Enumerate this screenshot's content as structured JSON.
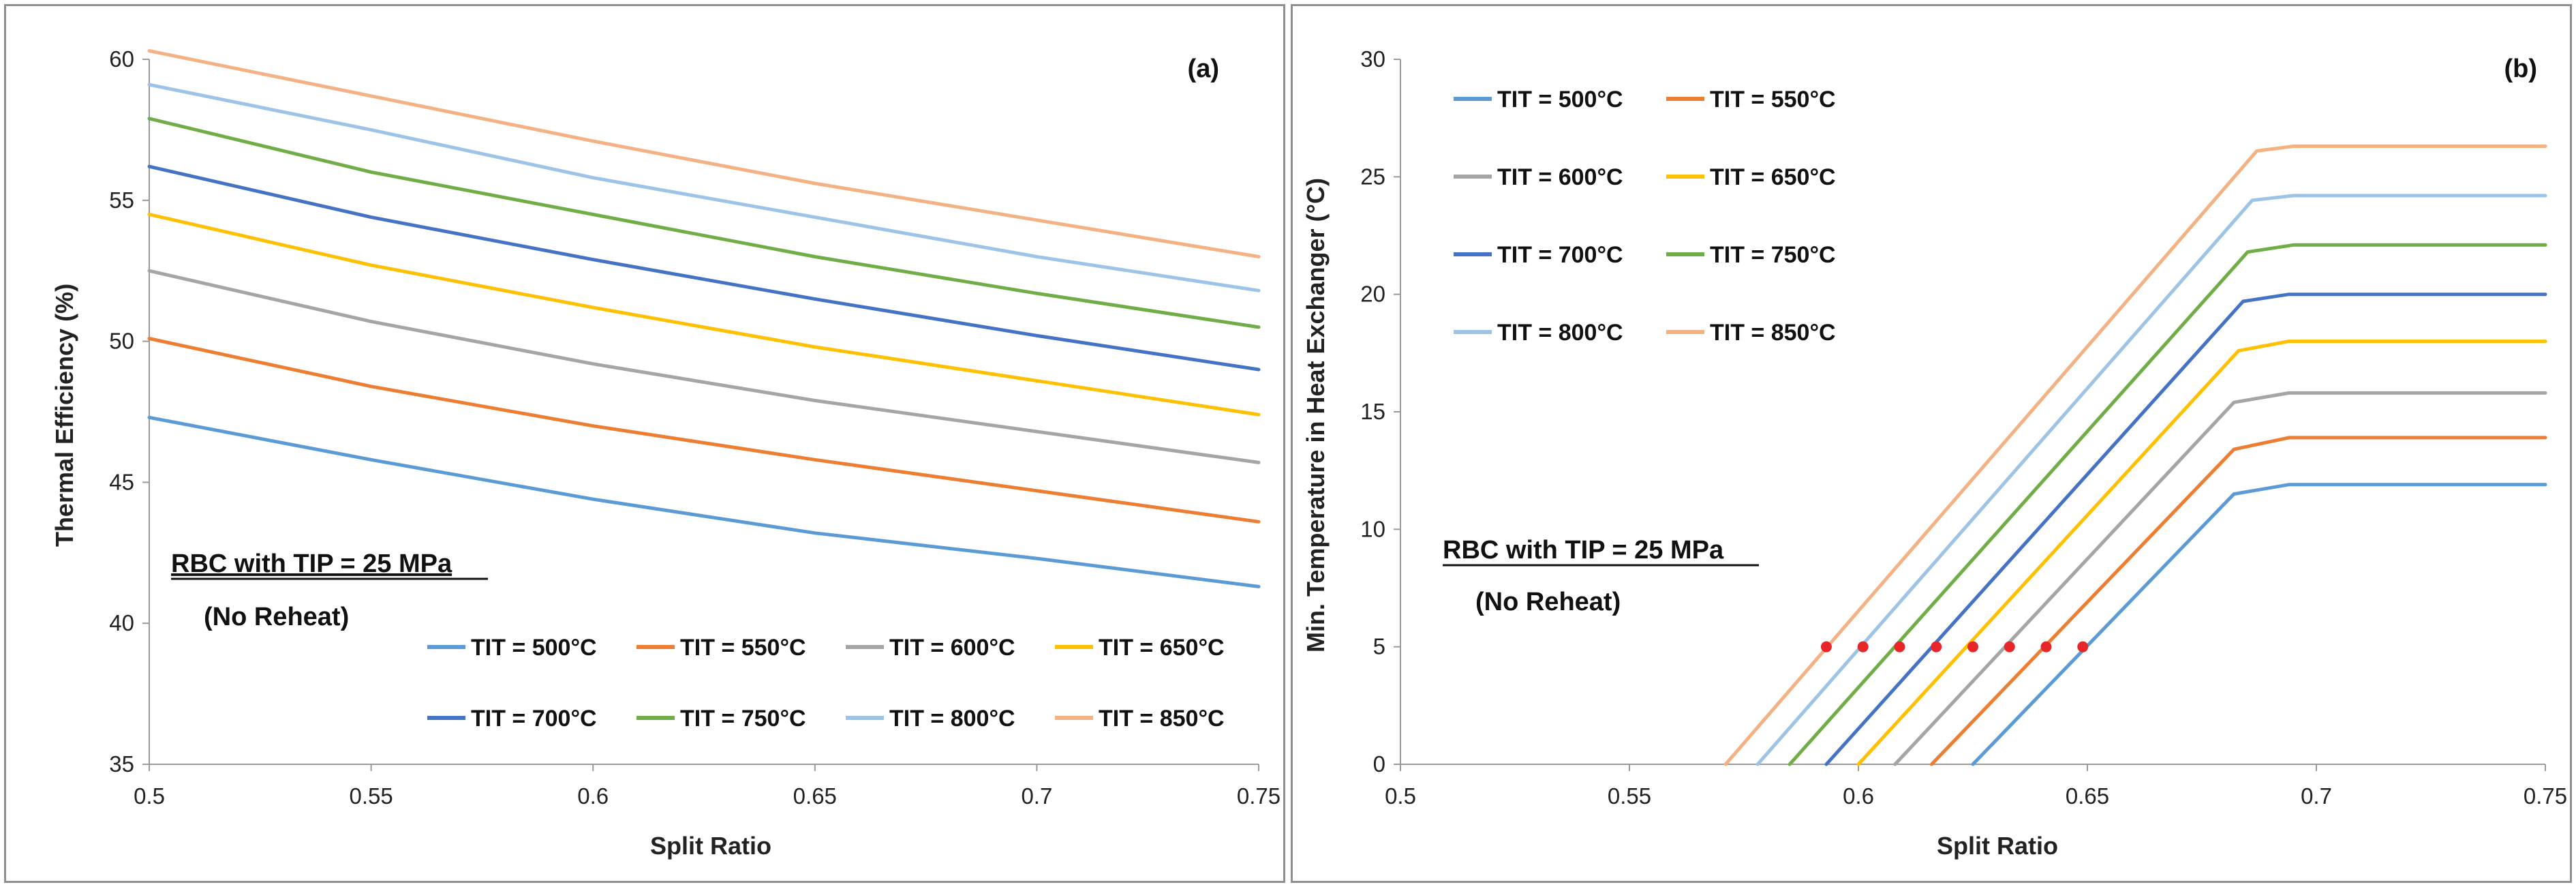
{
  "chart_data": [
    {
      "type": "line",
      "panel_label": "(a)",
      "title": "",
      "xlabel": "Split Ratio",
      "ylabel": "Thermal Efficiency (%)",
      "xlim": [
        0.5,
        0.75
      ],
      "ylim": [
        35,
        60
      ],
      "xticks": [
        "0.5",
        "0.55",
        "0.6",
        "0.65",
        "0.7",
        "0.75"
      ],
      "yticks": [
        "35",
        "40",
        "45",
        "50",
        "55",
        "60"
      ],
      "grid": false,
      "legend_position": "bottom-center",
      "annotation": {
        "line1": "RBC with TIP = 25 MPa",
        "line2": "(No Reheat)"
      },
      "x": [
        0.5,
        0.55,
        0.6,
        0.65,
        0.7,
        0.75
      ],
      "series": [
        {
          "name": "TIT = 500°C",
          "color": "#5b9bd5",
          "values": [
            47.3,
            45.8,
            44.4,
            43.2,
            42.3,
            41.3
          ]
        },
        {
          "name": "TIT = 550°C",
          "color": "#ed7d31",
          "values": [
            50.1,
            48.4,
            47.0,
            45.8,
            44.7,
            43.6
          ]
        },
        {
          "name": "TIT = 600°C",
          "color": "#a5a5a5",
          "values": [
            52.5,
            50.7,
            49.2,
            47.9,
            46.8,
            45.7
          ]
        },
        {
          "name": "TIT = 650°C",
          "color": "#ffc000",
          "values": [
            54.5,
            52.7,
            51.2,
            49.8,
            48.6,
            47.4
          ]
        },
        {
          "name": "TIT = 700°C",
          "color": "#4472c4",
          "values": [
            56.2,
            54.4,
            52.9,
            51.5,
            50.2,
            49.0
          ]
        },
        {
          "name": "TIT = 750°C",
          "color": "#70ad47",
          "values": [
            57.9,
            56.0,
            54.5,
            53.0,
            51.7,
            50.5
          ]
        },
        {
          "name": "TIT = 800°C",
          "color": "#9dc3e6",
          "values": [
            59.1,
            57.5,
            55.8,
            54.4,
            53.0,
            51.8
          ]
        },
        {
          "name": "TIT = 850°C",
          "color": "#f4b183",
          "values": [
            60.3,
            58.7,
            57.1,
            55.6,
            54.3,
            53.0
          ]
        }
      ]
    },
    {
      "type": "line",
      "panel_label": "(b)",
      "title": "",
      "xlabel": "Split Ratio",
      "ylabel": "Min. Temperature in Heat Exchanger (°C)",
      "xlim": [
        0.5,
        0.75
      ],
      "ylim": [
        0,
        30
      ],
      "xticks": [
        "0.5",
        "0.55",
        "0.6",
        "0.65",
        "0.7",
        "0.75"
      ],
      "yticks": [
        "0",
        "5",
        "10",
        "15",
        "20",
        "25",
        "30"
      ],
      "grid": false,
      "legend_position": "top-left",
      "annotation": {
        "line1": "RBC with TIP = 25 MPa",
        "line2": "(No Reheat)"
      },
      "series": [
        {
          "name": "TIT = 500°C",
          "color": "#5b9bd5",
          "points": [
            [
              0.625,
              0
            ],
            [
              0.682,
              11.5
            ],
            [
              0.694,
              11.9
            ],
            [
              0.75,
              11.9
            ]
          ],
          "marker": [
            0.649,
            5
          ]
        },
        {
          "name": "TIT = 550°C",
          "color": "#ed7d31",
          "points": [
            [
              0.616,
              0
            ],
            [
              0.682,
              13.4
            ],
            [
              0.694,
              13.9
            ],
            [
              0.75,
              13.9
            ]
          ],
          "marker": [
            0.641,
            5
          ]
        },
        {
          "name": "TIT = 600°C",
          "color": "#a5a5a5",
          "points": [
            [
              0.608,
              0
            ],
            [
              0.682,
              15.4
            ],
            [
              0.694,
              15.8
            ],
            [
              0.75,
              15.8
            ]
          ],
          "marker": [
            0.633,
            5
          ]
        },
        {
          "name": "TIT = 650°C",
          "color": "#ffc000",
          "points": [
            [
              0.6,
              0
            ],
            [
              0.683,
              17.6
            ],
            [
              0.694,
              18.0
            ],
            [
              0.75,
              18.0
            ]
          ],
          "marker": [
            0.625,
            5
          ]
        },
        {
          "name": "TIT = 700°C",
          "color": "#4472c4",
          "points": [
            [
              0.593,
              0
            ],
            [
              0.684,
              19.7
            ],
            [
              0.694,
              20.0
            ],
            [
              0.75,
              20.0
            ]
          ],
          "marker": [
            0.617,
            5
          ]
        },
        {
          "name": "TIT = 750°C",
          "color": "#70ad47",
          "points": [
            [
              0.585,
              0
            ],
            [
              0.685,
              21.8
            ],
            [
              0.695,
              22.1
            ],
            [
              0.75,
              22.1
            ]
          ],
          "marker": [
            0.609,
            5
          ]
        },
        {
          "name": "TIT = 800°C",
          "color": "#9dc3e6",
          "points": [
            [
              0.578,
              0
            ],
            [
              0.686,
              24.0
            ],
            [
              0.695,
              24.2
            ],
            [
              0.75,
              24.2
            ]
          ],
          "marker": [
            0.601,
            5
          ]
        },
        {
          "name": "TIT = 850°C",
          "color": "#f4b183",
          "points": [
            [
              0.571,
              0
            ],
            [
              0.687,
              26.1
            ],
            [
              0.695,
              26.3
            ],
            [
              0.75,
              26.3
            ]
          ],
          "marker": [
            0.593,
            5
          ]
        }
      ],
      "marker_color": "#e8262a"
    }
  ]
}
